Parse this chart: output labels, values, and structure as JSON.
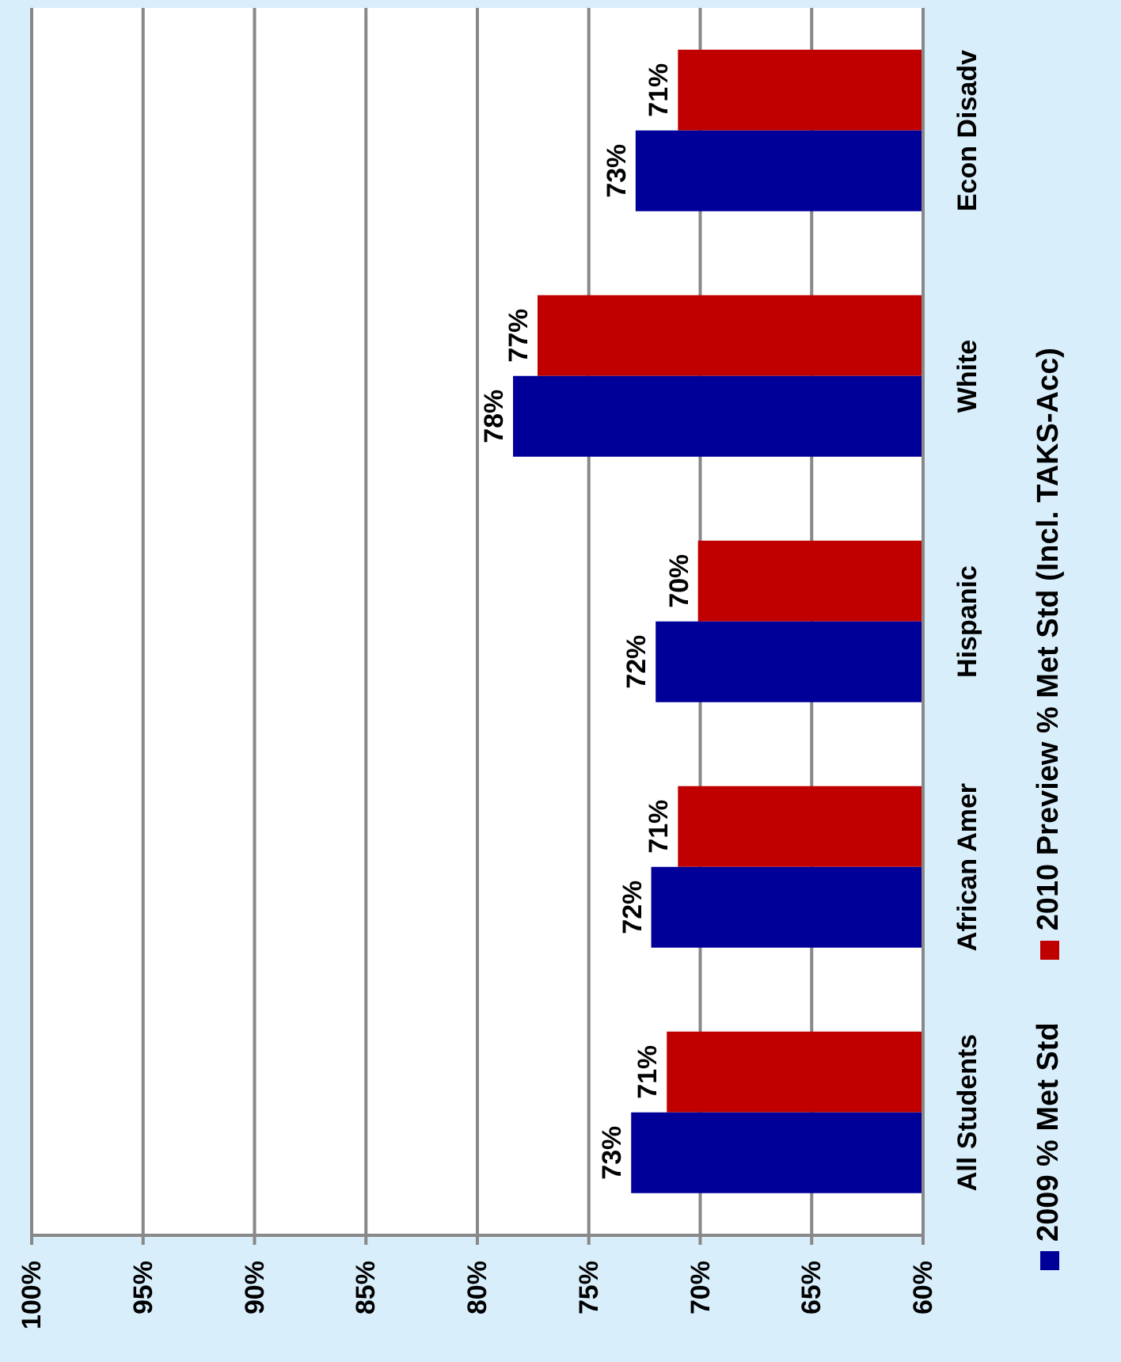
{
  "chart_data": {
    "type": "bar",
    "orientation": "horizontal",
    "categories": [
      "Econ Disadv",
      "White",
      "Hispanic",
      "African Amer",
      "All Students"
    ],
    "series": [
      {
        "name": "2009 % Met Std",
        "color": "#000099",
        "values": [
          72.9,
          78.4,
          72.0,
          72.2,
          73.1
        ],
        "value_labels": [
          "73%",
          "78%",
          "72%",
          "72%",
          "73%"
        ]
      },
      {
        "name": "2010 Preview % Met Std (Incl. TAKS-Acc)",
        "color": "#c00000",
        "values": [
          71.0,
          77.3,
          70.1,
          71.0,
          71.5
        ],
        "value_labels": [
          "71%",
          "77%",
          "70%",
          "71%",
          "71%"
        ]
      }
    ],
    "xlim": [
      100,
      60
    ],
    "xticks": [
      {
        "value": 100,
        "label": "100%"
      },
      {
        "value": 95,
        "label": "95%"
      },
      {
        "value": 90,
        "label": "90%"
      },
      {
        "value": 85,
        "label": "85%"
      },
      {
        "value": 80,
        "label": "80%"
      },
      {
        "value": 75,
        "label": "75%"
      },
      {
        "value": 70,
        "label": "70%"
      },
      {
        "value": 65,
        "label": "65%"
      },
      {
        "value": 60,
        "label": "60%"
      }
    ],
    "grid": "x",
    "legend": "right"
  }
}
